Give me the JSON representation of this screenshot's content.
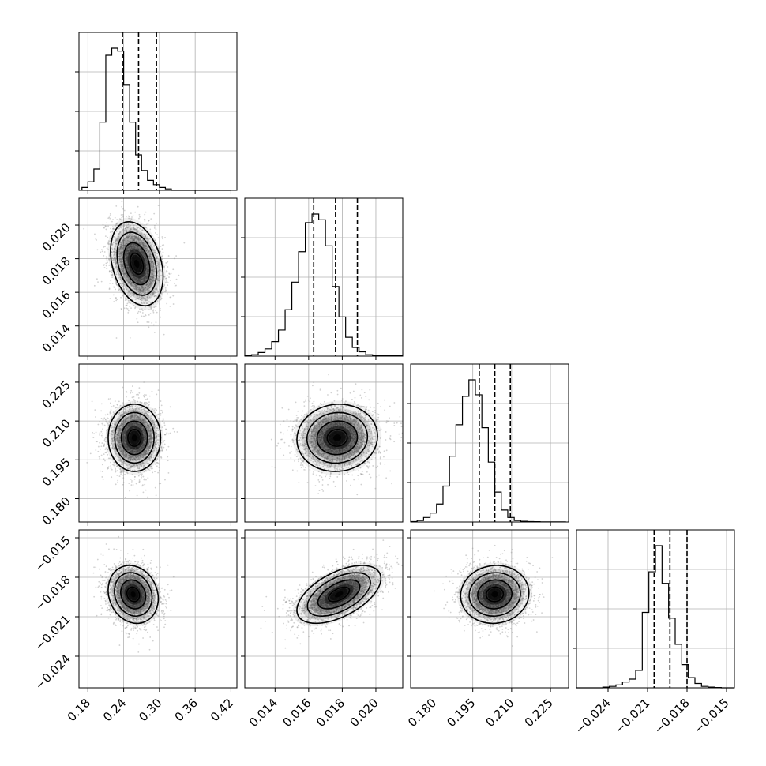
{
  "chart_data": {
    "type": "corner",
    "parameters": [
      {
        "id": "p1",
        "range": [
          0.165,
          0.43
        ],
        "ticks": [
          "0.18",
          "0.24",
          "0.30",
          "0.36",
          "0.42"
        ],
        "tick_values": [
          0.18,
          0.24,
          0.3,
          0.36,
          0.42
        ],
        "quantiles": [
          0.238,
          0.265,
          0.295
        ],
        "hist": {
          "start": 0.17,
          "width": 0.01,
          "counts": [
            2,
            6,
            15,
            48,
            95,
            100,
            98,
            74,
            48,
            25,
            14,
            7,
            4,
            2,
            1,
            0,
            0,
            0,
            0,
            0,
            0,
            0,
            0,
            0,
            0
          ]
        }
      },
      {
        "id": "p2",
        "range": [
          0.0122,
          0.0216
        ],
        "ticks": [
          "0.014",
          "0.016",
          "0.018",
          "0.020"
        ],
        "tick_values": [
          0.014,
          0.016,
          0.018,
          0.02
        ],
        "quantiles": [
          0.0163,
          0.0176,
          0.0189
        ],
        "hist": {
          "start": 0.0122,
          "width": 0.0004,
          "counts": [
            0.5,
            1,
            2.5,
            5,
            10,
            18,
            32,
            51,
            72,
            92,
            98,
            94,
            76,
            48,
            27,
            13,
            6,
            3,
            1,
            0.5,
            0.5,
            0.3,
            0.2,
            0.2
          ]
        }
      },
      {
        "id": "p3",
        "range": [
          0.171,
          0.232
        ],
        "ticks": [
          "0.180",
          "0.195",
          "0.210",
          "0.225"
        ],
        "tick_values": [
          0.18,
          0.195,
          0.21,
          0.225
        ],
        "quantiles": [
          0.1975,
          0.2035,
          0.2095
        ],
        "hist": {
          "start": 0.171,
          "width": 0.0025,
          "counts": [
            0.3,
            1,
            3,
            6,
            12,
            24,
            44,
            65,
            84,
            95,
            85,
            63,
            40,
            20,
            8,
            3,
            1,
            0.5,
            0.3,
            0.2,
            0.1,
            0.1,
            0.1,
            0.1
          ]
        }
      },
      {
        "id": "p4",
        "range": [
          -0.0264,
          -0.0144
        ],
        "ticks": [
          "−0.024",
          "−0.021",
          "−0.018",
          "−0.015"
        ],
        "tick_values": [
          -0.024,
          -0.021,
          -0.018,
          -0.015
        ],
        "quantiles": [
          -0.0205,
          -0.0193,
          -0.018
        ],
        "hist": {
          "start": -0.0264,
          "width": 0.0005,
          "counts": [
            0,
            0,
            0,
            0,
            0.5,
            1,
            2,
            4,
            6,
            12,
            52,
            80,
            98,
            72,
            48,
            30,
            16,
            7,
            3,
            1,
            0.5,
            0.2,
            0,
            0
          ]
        }
      }
    ],
    "pairs": [
      {
        "row": 1,
        "col": 0,
        "mean": [
          0.262,
          0.0177
        ],
        "sd": [
          0.022,
          0.00125
        ],
        "rho": -0.3
      },
      {
        "row": 2,
        "col": 0,
        "mean": [
          0.258,
          0.2035
        ],
        "sd": [
          0.022,
          0.0065
        ],
        "rho": 0
      },
      {
        "row": 2,
        "col": 1,
        "mean": [
          0.0177,
          0.2035
        ],
        "sd": [
          0.0012,
          0.0065
        ],
        "rho": 0.05
      },
      {
        "row": 3,
        "col": 0,
        "mean": [
          0.256,
          -0.0193
        ],
        "sd": [
          0.021,
          0.0011
        ],
        "rho": -0.15
      },
      {
        "row": 3,
        "col": 1,
        "mean": [
          0.0178,
          -0.0193
        ],
        "sd": [
          0.00125,
          0.0011
        ],
        "rho": 0.55
      },
      {
        "row": 3,
        "col": 2,
        "mean": [
          0.2035,
          -0.0193
        ],
        "sd": [
          0.0066,
          0.0011
        ],
        "rho": 0.05
      }
    ],
    "contour_levels": [
      0.5,
      1.0,
      1.5,
      2.0
    ],
    "grid": true,
    "colors": {
      "points": "#9a9a9a",
      "lines": "#000000",
      "grid": "#b0b0b0"
    }
  }
}
